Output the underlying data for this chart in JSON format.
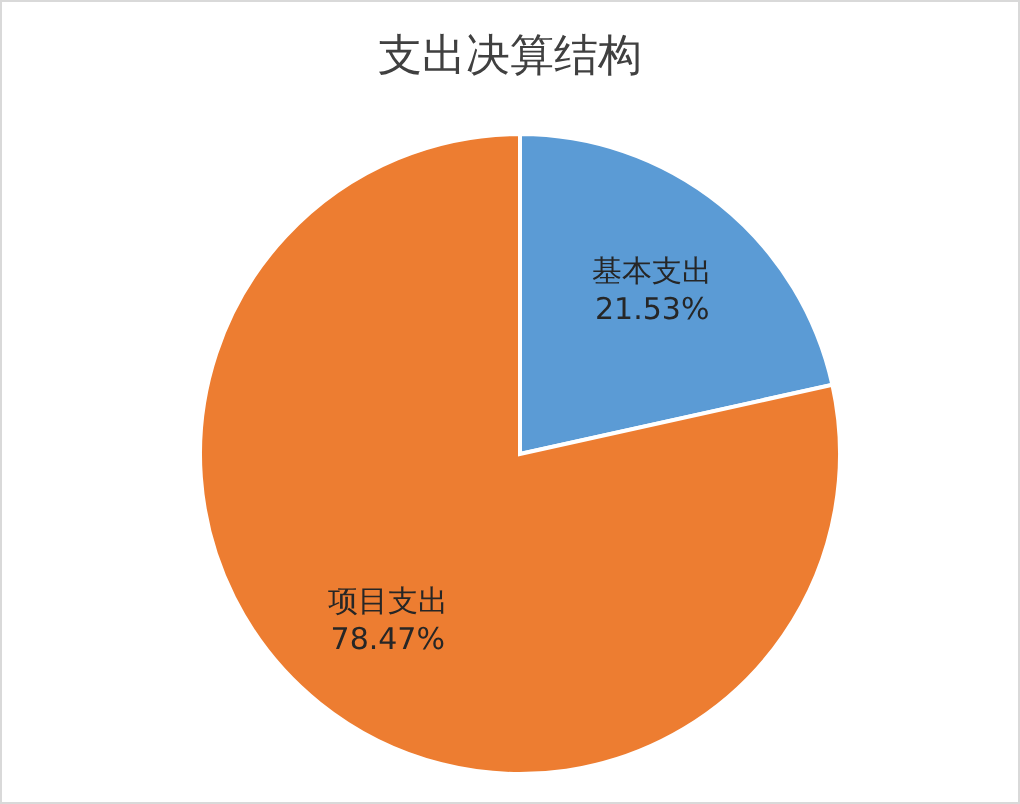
{
  "chart_data": {
    "type": "pie",
    "title": "支出决算结构",
    "categories": [
      "基本支出",
      "项目支出"
    ],
    "values": [
      21.53,
      78.47
    ],
    "colors": [
      "#5b9bd5",
      "#ed7d31"
    ],
    "value_labels": [
      "21.53%",
      "78.47%"
    ]
  }
}
